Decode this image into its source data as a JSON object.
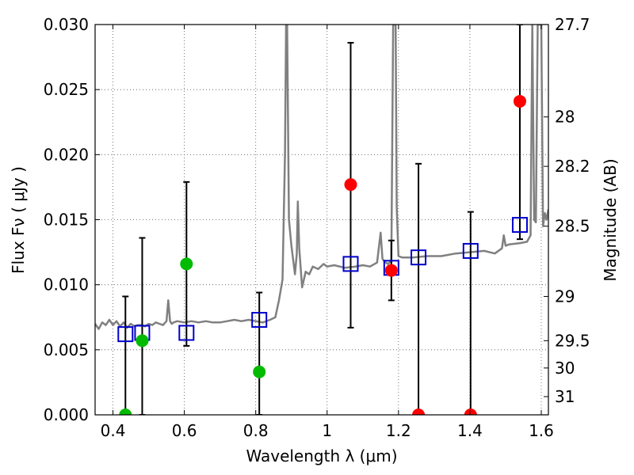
{
  "chart_data": {
    "type": "scatter",
    "xlabel_text": "Wavelength  λ (μm)",
    "ylabel_text": "Flux  Fν  ( μJy )",
    "y2label": "Magnitude (AB)",
    "xlim": [
      0.35,
      1.62
    ],
    "ylim": [
      0.0,
      0.03
    ],
    "grid": true,
    "x_ticks": [
      0.4,
      0.6,
      0.8,
      1.0,
      1.2,
      1.4,
      1.6
    ],
    "x_tick_labels": [
      "0.4",
      "0.6",
      "0.8",
      "1",
      "1.2",
      "1.4",
      "1.6"
    ],
    "y_ticks": [
      0.0,
      0.005,
      0.01,
      0.015,
      0.02,
      0.025,
      0.03
    ],
    "y_tick_labels": [
      "0.000",
      "0.005",
      "0.010",
      "0.015",
      "0.020",
      "0.025",
      "0.030"
    ],
    "y2_ticks": [
      {
        "label": "27.7",
        "flux": 0.03
      },
      {
        "label": "28",
        "flux": 0.0229
      },
      {
        "label": "28.2",
        "flux": 0.0191
      },
      {
        "label": "28.5",
        "flux": 0.0145
      },
      {
        "label": "29",
        "flux": 0.0091
      },
      {
        "label": "29.5",
        "flux": 0.0057
      },
      {
        "label": "30",
        "flux": 0.0036
      },
      {
        "label": "31",
        "flux": 0.0014
      }
    ],
    "colors": {
      "sed": "#808080",
      "model": "#0000cc",
      "detected": "#00bb00",
      "constraint": "#ff0000",
      "errorbar": "#000000",
      "grid": "#555555"
    },
    "series": [
      {
        "name": "SED template",
        "kind": "line",
        "x": [
          0.35,
          0.36,
          0.37,
          0.38,
          0.39,
          0.4,
          0.41,
          0.42,
          0.43,
          0.44,
          0.45,
          0.46,
          0.47,
          0.48,
          0.49,
          0.5,
          0.51,
          0.52,
          0.53,
          0.54,
          0.55,
          0.555,
          0.56,
          0.565,
          0.57,
          0.58,
          0.6,
          0.62,
          0.64,
          0.66,
          0.68,
          0.7,
          0.72,
          0.74,
          0.76,
          0.78,
          0.8,
          0.82,
          0.84,
          0.855,
          0.865,
          0.875,
          0.882,
          0.885,
          0.888,
          0.893,
          0.9,
          0.91,
          0.915,
          0.918,
          0.922,
          0.93,
          0.94,
          0.95,
          0.96,
          0.975,
          0.99,
          1.0,
          1.02,
          1.05,
          1.08,
          1.1,
          1.12,
          1.14,
          1.15,
          1.155,
          1.16,
          1.17,
          1.18,
          1.185,
          1.19,
          1.192,
          1.195,
          1.2,
          1.21,
          1.24,
          1.28,
          1.32,
          1.36,
          1.4,
          1.44,
          1.47,
          1.49,
          1.495,
          1.5,
          1.51,
          1.54,
          1.56,
          1.57,
          1.575,
          1.58,
          1.585,
          1.59,
          1.6,
          1.605,
          1.61,
          1.615,
          1.62
        ],
        "y": [
          0.007,
          0.0066,
          0.0071,
          0.0069,
          0.0073,
          0.0069,
          0.0072,
          0.0068,
          0.0071,
          0.0067,
          0.007,
          0.0068,
          0.0069,
          0.0069,
          0.0068,
          0.007,
          0.0069,
          0.0071,
          0.007,
          0.0069,
          0.0072,
          0.0088,
          0.0072,
          0.007,
          0.0071,
          0.0072,
          0.0071,
          0.0072,
          0.0071,
          0.0072,
          0.0071,
          0.0071,
          0.0072,
          0.0073,
          0.0072,
          0.0073,
          0.0072,
          0.0071,
          0.0073,
          0.0075,
          0.0088,
          0.0104,
          0.02,
          0.03,
          0.03,
          0.015,
          0.013,
          0.0108,
          0.0124,
          0.0164,
          0.0128,
          0.0098,
          0.011,
          0.0108,
          0.0114,
          0.0112,
          0.0116,
          0.0114,
          0.0115,
          0.0113,
          0.0114,
          0.0115,
          0.0114,
          0.0117,
          0.014,
          0.012,
          0.0118,
          0.0116,
          0.0118,
          0.03,
          0.03,
          0.03,
          0.016,
          0.0122,
          0.0121,
          0.0121,
          0.0122,
          0.0122,
          0.0124,
          0.0125,
          0.0126,
          0.0124,
          0.0128,
          0.0138,
          0.013,
          0.0131,
          0.0132,
          0.0133,
          0.0138,
          0.03,
          0.015,
          0.0148,
          0.03,
          0.03,
          0.0145,
          0.0155,
          0.015,
          0.0158
        ]
      },
      {
        "name": "Model photometry",
        "kind": "open-square",
        "x": [
          0.435,
          0.482,
          0.606,
          0.81,
          1.066,
          1.18,
          1.256,
          1.402,
          1.54
        ],
        "y": [
          0.0062,
          0.0063,
          0.0063,
          0.0073,
          0.0116,
          0.0113,
          0.0121,
          0.0126,
          0.0146
        ]
      },
      {
        "name": "Detected photometry",
        "kind": "filled-circle",
        "x": [
          0.435,
          0.482,
          0.606,
          0.81
        ],
        "y": [
          0.0,
          0.0057,
          0.0116,
          0.0033
        ]
      },
      {
        "name": "Low-S/N photometry",
        "kind": "filled-circle",
        "x": [
          1.066,
          1.18,
          1.256,
          1.402,
          1.54
        ],
        "y": [
          0.0177,
          0.0111,
          0.0,
          0.0,
          0.0241
        ]
      }
    ],
    "errorbars": [
      {
        "x": 0.435,
        "low": 0.0,
        "high": 0.0091
      },
      {
        "x": 0.482,
        "low": 0.0,
        "high": 0.0136
      },
      {
        "x": 0.606,
        "low": 0.0053,
        "high": 0.0179
      },
      {
        "x": 0.81,
        "low": 0.0,
        "high": 0.0094
      },
      {
        "x": 1.066,
        "low": 0.0067,
        "high": 0.0286
      },
      {
        "x": 1.18,
        "low": 0.0088,
        "high": 0.0134
      },
      {
        "x": 1.256,
        "low": 0.0,
        "high": 0.0193
      },
      {
        "x": 1.402,
        "low": 0.0,
        "high": 0.0156
      },
      {
        "x": 1.54,
        "low": 0.0135,
        "high": 0.03
      }
    ]
  }
}
